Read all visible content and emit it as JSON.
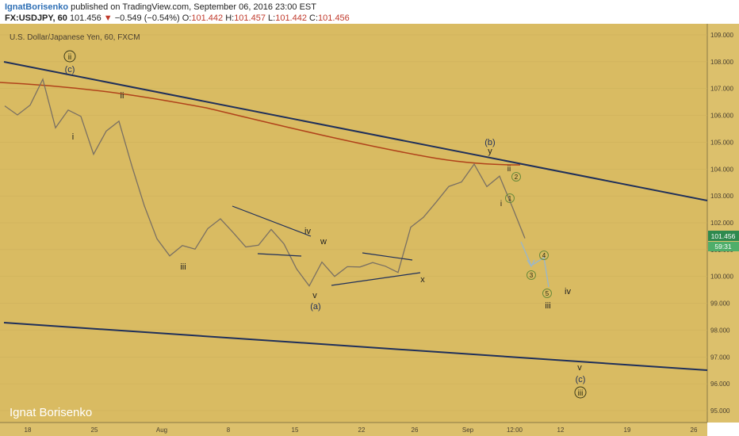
{
  "header": {
    "author": "IgnatBorisenko",
    "published_text": " published on TradingView.com, September 06, 2016 23:00 EST",
    "symbol": "FX:USDJPY, 60",
    "last": "101.456",
    "change_arrow": "▼",
    "change": "−0.549 (−0.54%)",
    "o_label": "O:",
    "o": "101.442",
    "h_label": "H:",
    "h": "101.457",
    "l_label": "L:",
    "l": "101.442",
    "c_label": "C:",
    "c": "101.456"
  },
  "chart_data": {
    "type": "line",
    "title": "U.S. Dollar/Japanese Yen, 60, FXCM",
    "watermark": "Ignat Borisenko",
    "ylim": [
      94.8,
      109.3
    ],
    "price_ticks": [
      "109.000",
      "108.000",
      "107.000",
      "106.000",
      "105.000",
      "104.000",
      "103.000",
      "102.000",
      "101.000",
      "100.000",
      "99.000",
      "98.000",
      "97.000",
      "96.000",
      "95.000"
    ],
    "current_price_label": "101.456",
    "countdown_label": "59:31",
    "x_ticks": [
      "18",
      "25",
      "Aug",
      "8",
      "15",
      "22",
      "26",
      "Sep",
      "12:00",
      "12",
      "19",
      "26"
    ],
    "price_series": [
      [
        "Jul 18",
        106.3
      ],
      [
        "Jul 19",
        106.0
      ],
      [
        "Jul 20",
        106.4
      ],
      [
        "Jul 21",
        107.4
      ],
      [
        "Jul 21",
        105.5
      ],
      [
        "Jul 22",
        106.2
      ],
      [
        "Jul 25",
        106.0
      ],
      [
        "Jul 26",
        104.5
      ],
      [
        "Jul 27",
        105.4
      ],
      [
        "Jul 28",
        105.8
      ],
      [
        "Jul 28",
        104.2
      ],
      [
        "Jul 29",
        102.6
      ],
      [
        "Aug 1",
        101.4
      ],
      [
        "Aug 2",
        100.8
      ],
      [
        "Aug 3",
        101.1
      ],
      [
        "Aug 4",
        101.0
      ],
      [
        "Aug 5",
        101.8
      ],
      [
        "Aug 8",
        102.2
      ],
      [
        "Aug 9",
        101.6
      ],
      [
        "Aug 10",
        101.1
      ],
      [
        "Aug 11",
        101.2
      ],
      [
        "Aug 12",
        101.7
      ],
      [
        "Aug 15",
        101.2
      ],
      [
        "Aug 16",
        100.3
      ],
      [
        "Aug 17",
        99.7
      ],
      [
        "Aug 18",
        100.5
      ],
      [
        "Aug 19",
        100.0
      ],
      [
        "Aug 22",
        100.4
      ],
      [
        "Aug 23",
        100.3
      ],
      [
        "Aug 24",
        100.5
      ],
      [
        "Aug 25",
        100.4
      ],
      [
        "Aug 26",
        100.2
      ],
      [
        "Aug 26",
        101.8
      ],
      [
        "Aug 29",
        102.2
      ],
      [
        "Aug 30",
        102.8
      ],
      [
        "Aug 31",
        103.3
      ],
      [
        "Sep 1",
        103.5
      ],
      [
        "Sep 2",
        104.2
      ],
      [
        "Sep 5",
        103.4
      ],
      [
        "Sep 5",
        103.7
      ],
      [
        "Sep 6",
        102.6
      ],
      [
        "Sep 6",
        101.456
      ]
    ],
    "series": [
      {
        "type": "moving-average",
        "color": "#b0421a"
      },
      {
        "type": "trendline",
        "color": "#1f2f5a"
      }
    ],
    "wave_labels": [
      "(c)",
      "ii",
      "i",
      "ii",
      "iii",
      "iv",
      "w",
      "v",
      "(a)",
      "x",
      "(b)",
      "y",
      "ii",
      "i",
      "1",
      "2",
      "3",
      "4",
      "5",
      "iii",
      "iv",
      "v",
      "(c)",
      "iii"
    ],
    "colors": {
      "background": "#d9bb62",
      "grid": "#c9ad58",
      "price": "#7a7062",
      "trendline": "#1f2f5a",
      "ma": "#b0421a",
      "projection": "#9bb7c9"
    }
  }
}
